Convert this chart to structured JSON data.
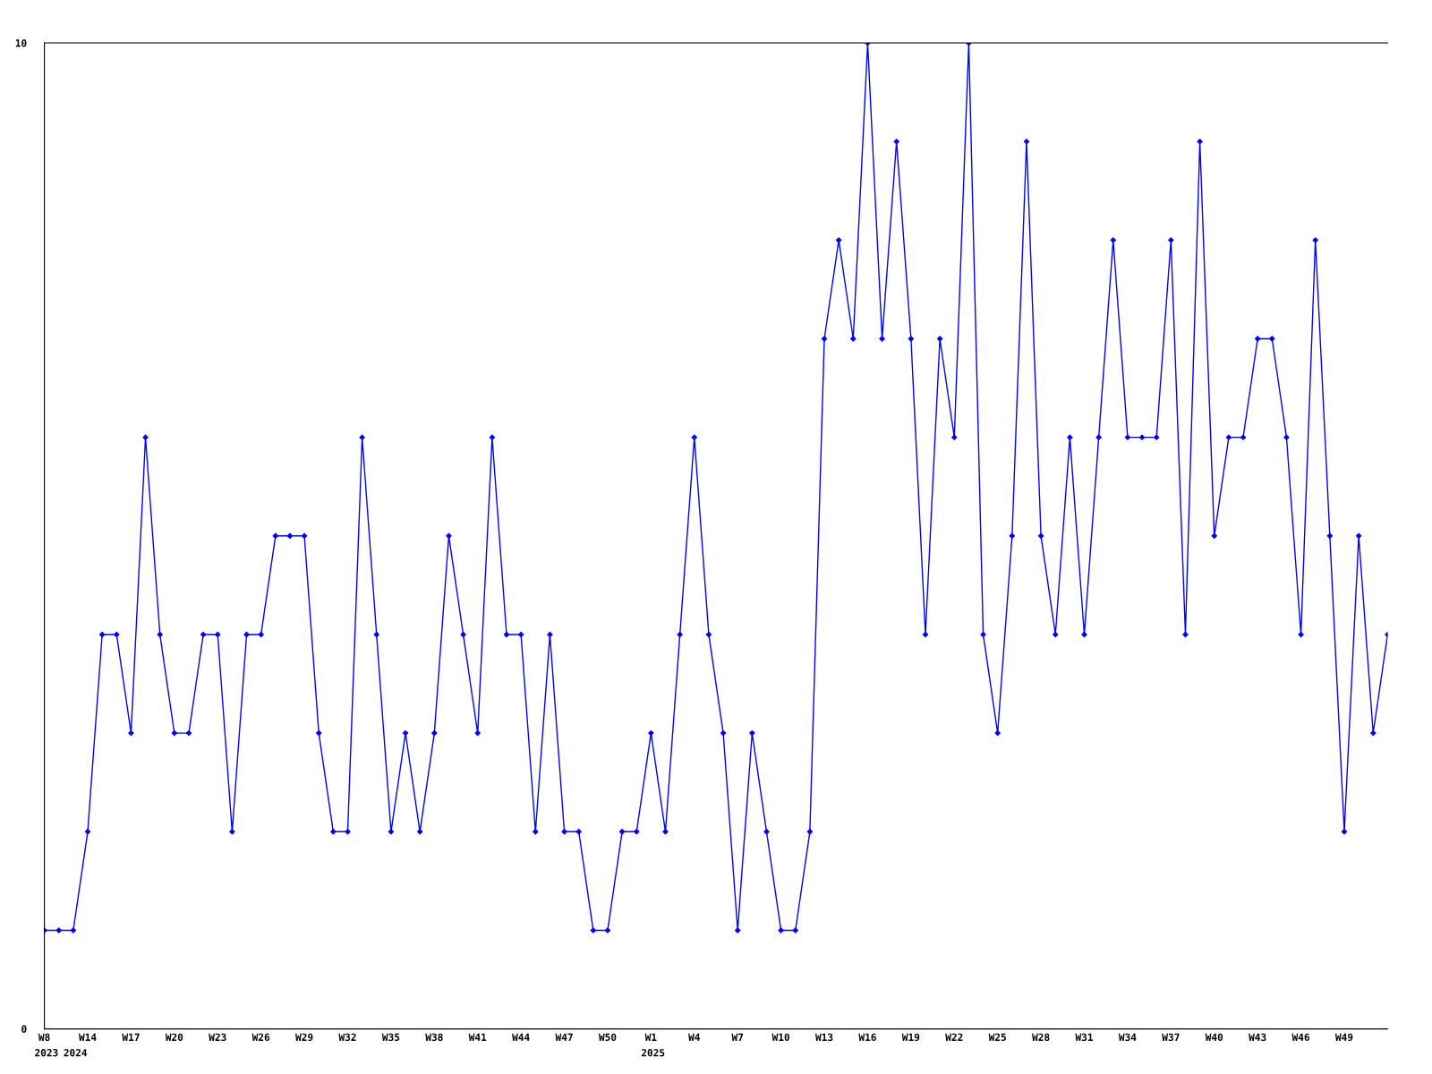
{
  "chart_data": {
    "type": "line",
    "categories": [
      "W8\n2023",
      null,
      null,
      "W14",
      null,
      null,
      "W17",
      null,
      null,
      "W20",
      null,
      null,
      "W23",
      null,
      null,
      "W26",
      null,
      null,
      "W29",
      null,
      null,
      "W32",
      null,
      null,
      "W35",
      null,
      null,
      "W38",
      null,
      null,
      "W41",
      null,
      null,
      "W44",
      null,
      null,
      "W47",
      null,
      null,
      "W50",
      null,
      null,
      "W1\n2025",
      null,
      null,
      "W4",
      null,
      null,
      "W7",
      null,
      null,
      "W10",
      null,
      null,
      "W13",
      null,
      null,
      "W16",
      null,
      null,
      "W19",
      null,
      null,
      "W22",
      null,
      null,
      "W25",
      null,
      null,
      "W28",
      null,
      null,
      "W31",
      null,
      null,
      "W34",
      null,
      null,
      "W37",
      null,
      null,
      "W40",
      null,
      null,
      "W43",
      null,
      null,
      "W46",
      null,
      null,
      "W49",
      null,
      null,
      null
    ],
    "series": [
      {
        "color": "#0000ff",
        "values": [
          1,
          1,
          1,
          2,
          4,
          4,
          3,
          6,
          4,
          3,
          3,
          4,
          4,
          2,
          4,
          4,
          5,
          5,
          5,
          3,
          2,
          2,
          6,
          4,
          2,
          3,
          2,
          3,
          5,
          4,
          3,
          6,
          4,
          4,
          2,
          4,
          2,
          2,
          1,
          1,
          2,
          2,
          3,
          2,
          4,
          6,
          4,
          3,
          1,
          3,
          2,
          1,
          1,
          2,
          7,
          8,
          7,
          10,
          7,
          9,
          7,
          4,
          7,
          6,
          10,
          4,
          3,
          5,
          9,
          5,
          4,
          6,
          4,
          6,
          8,
          6,
          6,
          6,
          8,
          4,
          9,
          5,
          6,
          6,
          7,
          7,
          6,
          4,
          8,
          5,
          2,
          5,
          3,
          4
        ]
      }
    ],
    "ylim": [
      0,
      10
    ],
    "yticks": [
      0,
      10
    ],
    "grid": false,
    "marker": "diamond",
    "line_style": "solid",
    "annotations": [
      "2024"
    ]
  }
}
